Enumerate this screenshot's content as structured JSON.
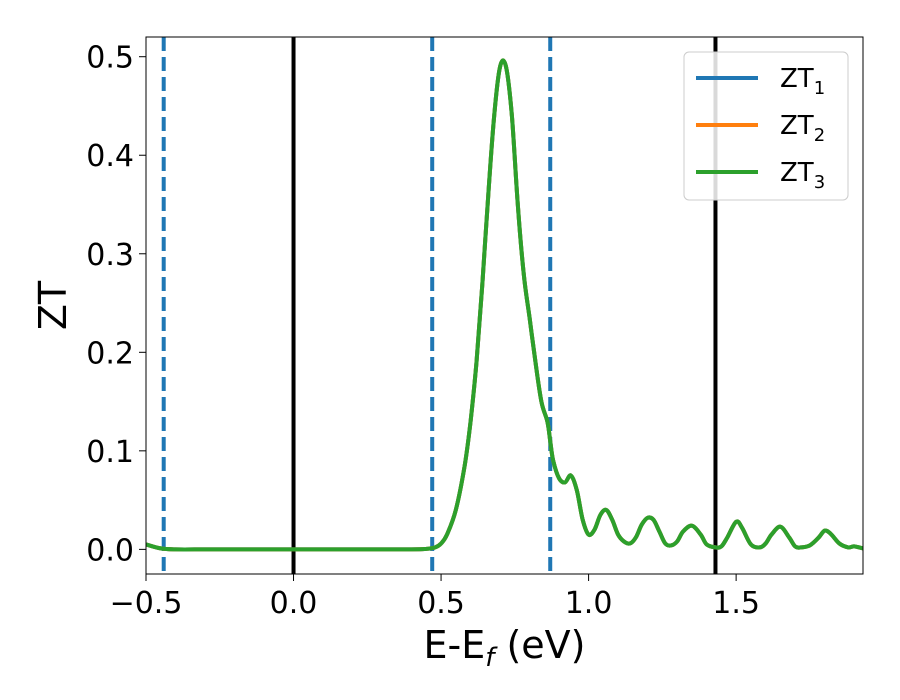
{
  "chart_data": {
    "type": "line",
    "title": "",
    "xlabel": {
      "main": "E-E",
      "sub": "f",
      "tail": " (eV)"
    },
    "ylabel": "ZT",
    "xlim": [
      -0.5,
      1.93
    ],
    "ylim": [
      -0.025,
      0.52
    ],
    "xticks": [
      -0.5,
      0.0,
      0.5,
      1.0,
      1.5
    ],
    "xtick_labels": [
      "−0.5",
      "0.0",
      "0.5",
      "1.0",
      "1.5"
    ],
    "yticks": [
      0.0,
      0.1,
      0.2,
      0.3,
      0.4,
      0.5
    ],
    "ytick_labels": [
      "0.0",
      "0.1",
      "0.2",
      "0.3",
      "0.4",
      "0.5"
    ],
    "grid": false,
    "legend_position": "top-right",
    "vlines_solid": [
      0.0,
      1.43
    ],
    "vlines_dashed": [
      -0.44,
      0.47,
      0.87
    ],
    "vline_solid_color": "#000000",
    "vline_dashed_color": "#1f77b4",
    "series": [
      {
        "name": "ZT",
        "sub": "1",
        "color": "#1f77b4"
      },
      {
        "name": "ZT",
        "sub": "2",
        "color": "#ff7f0e"
      },
      {
        "name": "ZT",
        "sub": "3",
        "color": "#2ca02c"
      }
    ],
    "x": [
      -0.5,
      -0.45,
      -0.4,
      -0.3,
      -0.2,
      0.0,
      0.2,
      0.4,
      0.45,
      0.48,
      0.5,
      0.52,
      0.55,
      0.58,
      0.6,
      0.62,
      0.64,
      0.66,
      0.68,
      0.7,
      0.72,
      0.74,
      0.76,
      0.78,
      0.8,
      0.82,
      0.84,
      0.86,
      0.87,
      0.88,
      0.9,
      0.92,
      0.94,
      0.96,
      0.98,
      1.0,
      1.02,
      1.04,
      1.06,
      1.08,
      1.1,
      1.12,
      1.14,
      1.16,
      1.18,
      1.2,
      1.22,
      1.24,
      1.26,
      1.28,
      1.3,
      1.32,
      1.35,
      1.38,
      1.4,
      1.43,
      1.45,
      1.47,
      1.5,
      1.52,
      1.55,
      1.58,
      1.6,
      1.62,
      1.65,
      1.68,
      1.7,
      1.72,
      1.75,
      1.78,
      1.8,
      1.82,
      1.85,
      1.88,
      1.9,
      1.93
    ],
    "y": [
      0.005,
      0.001,
      0.0,
      0.0,
      0.0,
      0.0,
      0.0,
      0.0,
      0.0005,
      0.002,
      0.006,
      0.015,
      0.04,
      0.085,
      0.13,
      0.19,
      0.27,
      0.36,
      0.44,
      0.49,
      0.49,
      0.44,
      0.35,
      0.28,
      0.235,
      0.19,
      0.15,
      0.13,
      0.11,
      0.09,
      0.072,
      0.068,
      0.075,
      0.06,
      0.03,
      0.015,
      0.02,
      0.035,
      0.04,
      0.03,
      0.015,
      0.008,
      0.006,
      0.012,
      0.025,
      0.032,
      0.03,
      0.018,
      0.006,
      0.004,
      0.008,
      0.018,
      0.024,
      0.015,
      0.005,
      0.002,
      0.003,
      0.012,
      0.028,
      0.022,
      0.005,
      0.002,
      0.006,
      0.015,
      0.023,
      0.012,
      0.003,
      0.002,
      0.004,
      0.012,
      0.019,
      0.016,
      0.006,
      0.002,
      0.003,
      0.001
    ]
  }
}
